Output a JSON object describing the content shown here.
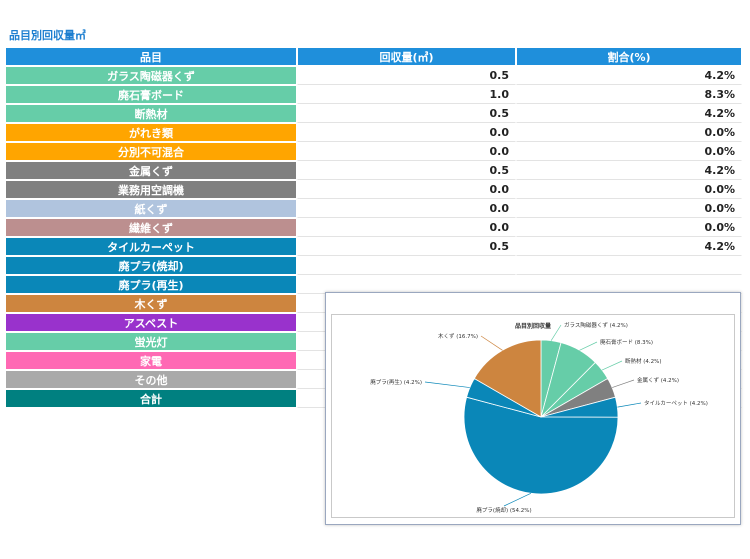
{
  "section_title": "品目別回収量㎥",
  "table": {
    "headers": [
      "品目",
      "回収量(㎥)",
      "割合(%)"
    ],
    "rows": [
      {
        "label": "ガラス陶磁器くず",
        "color": "#66cda8",
        "amount": "0.5",
        "ratio": "4.2%"
      },
      {
        "label": "廃石膏ボード",
        "color": "#66cda8",
        "amount": "1.0",
        "ratio": "8.3%"
      },
      {
        "label": "断熱材",
        "color": "#66cda8",
        "amount": "0.5",
        "ratio": "4.2%"
      },
      {
        "label": "がれき類",
        "color": "#ffa500",
        "amount": "0.0",
        "ratio": "0.0%"
      },
      {
        "label": "分別不可混合",
        "color": "#ffa500",
        "amount": "0.0",
        "ratio": "0.0%"
      },
      {
        "label": "金属くず",
        "color": "#808080",
        "amount": "0.5",
        "ratio": "4.2%"
      },
      {
        "label": "業務用空調機",
        "color": "#808080",
        "amount": "0.0",
        "ratio": "0.0%"
      },
      {
        "label": "紙くず",
        "color": "#b0c4de",
        "amount": "0.0",
        "ratio": "0.0%"
      },
      {
        "label": "繊維くず",
        "color": "#bc8f8f",
        "amount": "0.0",
        "ratio": "0.0%"
      },
      {
        "label": "タイルカーペット",
        "color": "#0a87b8",
        "amount": "0.5",
        "ratio": "4.2%"
      },
      {
        "label": "廃プラ(焼却)",
        "color": "#0a87b8",
        "amount": "",
        "ratio": ""
      },
      {
        "label": "廃プラ(再生)",
        "color": "#0a87b8",
        "amount": "",
        "ratio": ""
      },
      {
        "label": "木くず",
        "color": "#cd853f",
        "amount": "",
        "ratio": ""
      },
      {
        "label": "アスベスト",
        "color": "#9932cc",
        "amount": "",
        "ratio": ""
      },
      {
        "label": "蛍光灯",
        "color": "#66cda8",
        "amount": "",
        "ratio": ""
      },
      {
        "label": "家電",
        "color": "#ff69b4",
        "amount": "",
        "ratio": ""
      },
      {
        "label": "その他",
        "color": "#a9a9a9",
        "amount": "",
        "ratio": ""
      },
      {
        "label": "合計",
        "color": "#008080",
        "amount": "",
        "ratio": ""
      }
    ]
  },
  "chart_data": {
    "type": "pie",
    "title": "品目別回収量",
    "slices": [
      {
        "label": "ガラス陶磁器くず (4.2%)",
        "value": 4.2,
        "color": "#66cda8"
      },
      {
        "label": "廃石膏ボード (8.3%)",
        "value": 8.3,
        "color": "#66cda8"
      },
      {
        "label": "断熱材 (4.2%)",
        "value": 4.2,
        "color": "#66cda8"
      },
      {
        "label": "金属くず (4.2%)",
        "value": 4.2,
        "color": "#808080"
      },
      {
        "label": "タイルカーペット (4.2%)",
        "value": 4.2,
        "color": "#0a87b8"
      },
      {
        "label": "廃プラ(焼却) (54.2%)",
        "value": 54.2,
        "color": "#0a87b8"
      },
      {
        "label": "廃プラ(再生) (4.2%)",
        "value": 4.2,
        "color": "#0a87b8"
      },
      {
        "label": "木くず (16.7%)",
        "value": 16.7,
        "color": "#cd853f"
      }
    ]
  }
}
